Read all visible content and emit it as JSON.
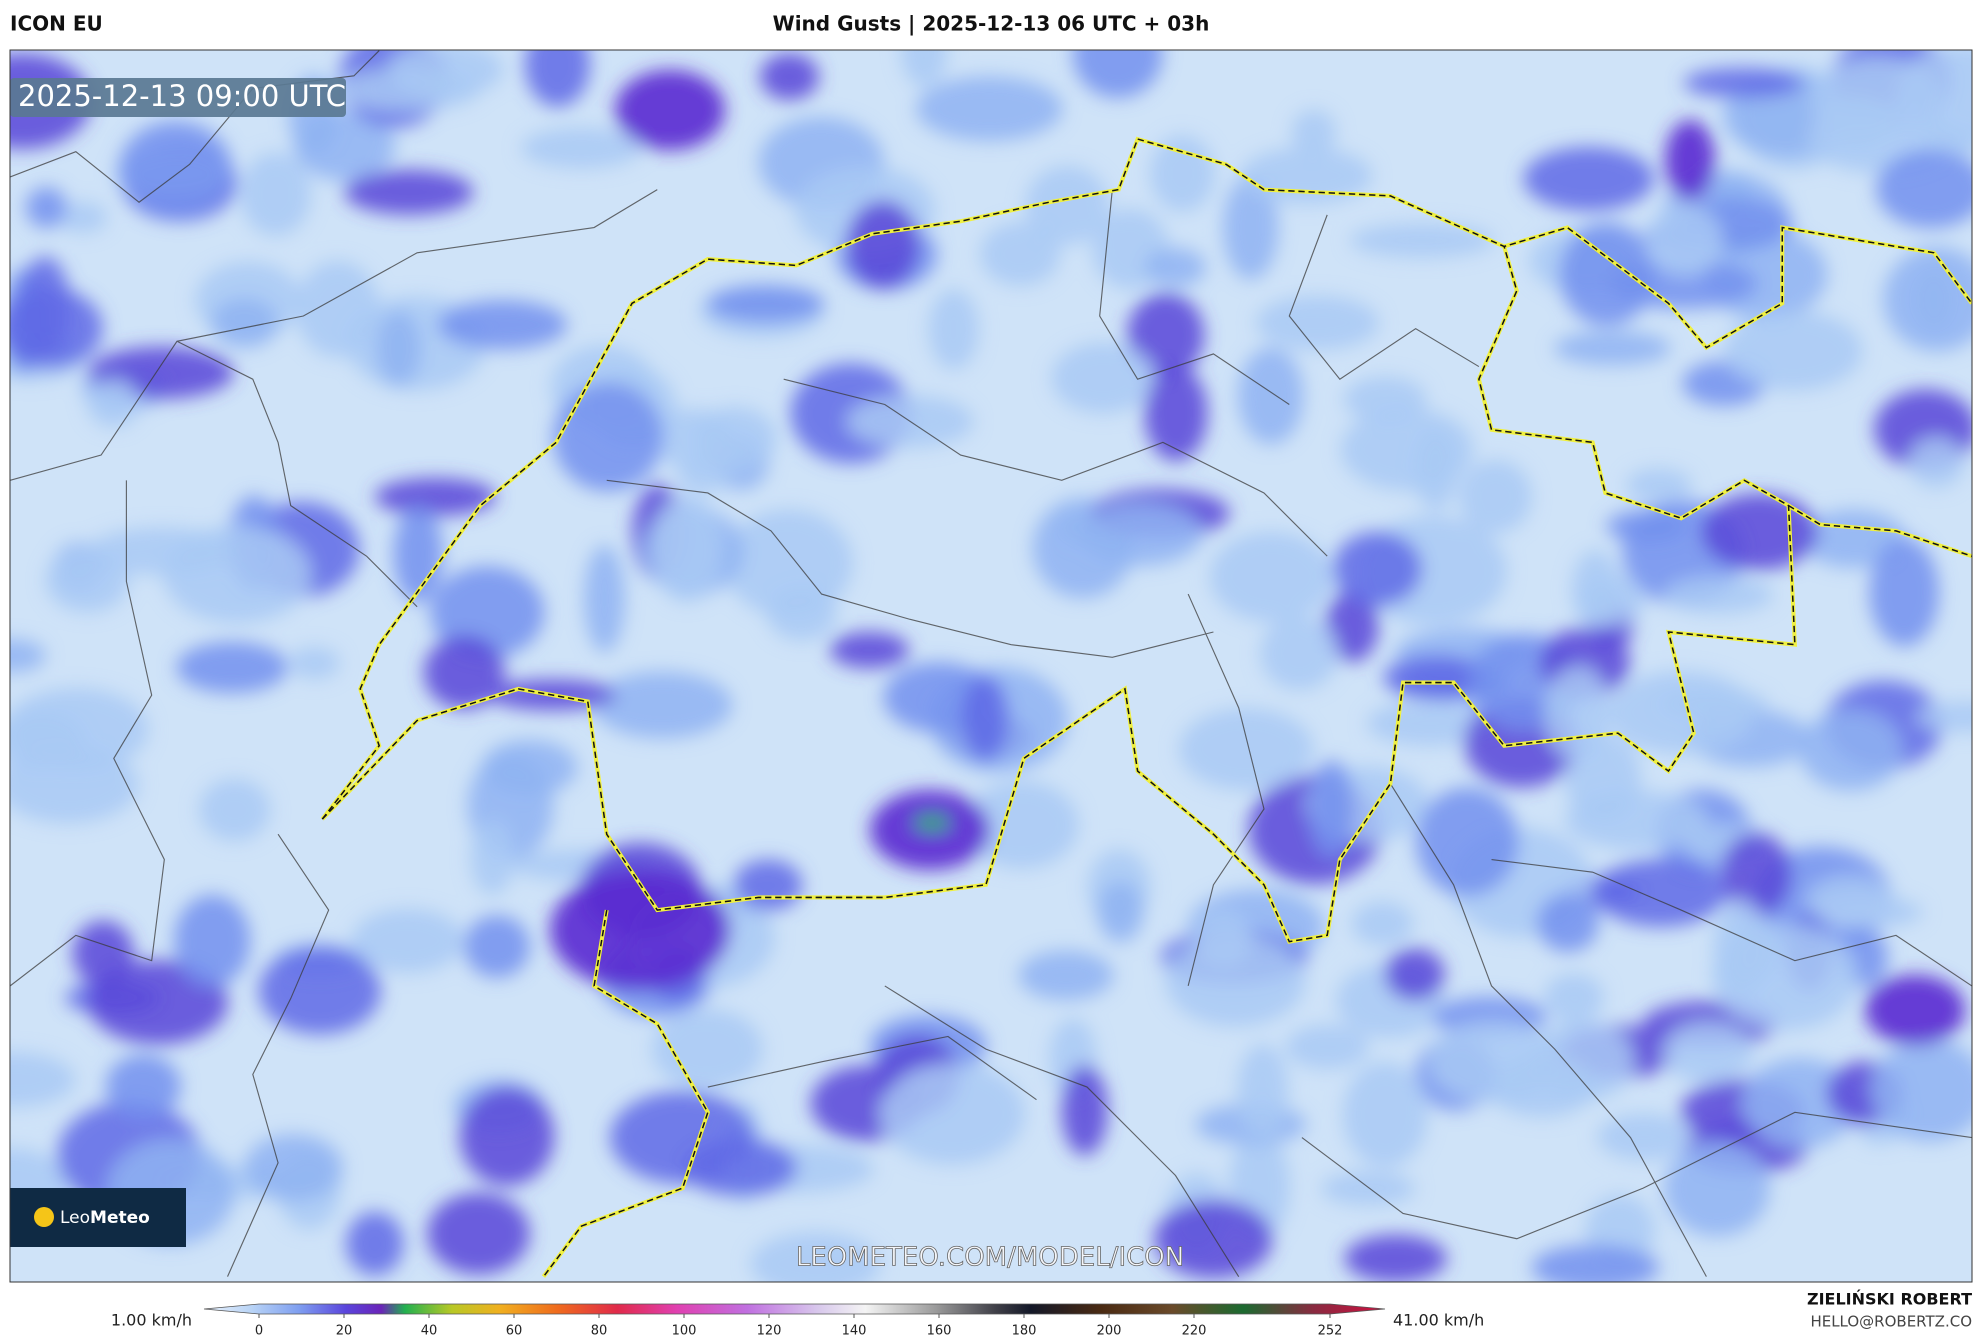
{
  "header": {
    "model": "ICON EU",
    "title": "Wind Gusts | 2025-12-13 06 UTC + 03h"
  },
  "map": {
    "valid_time": "2025-12-13 09:00 UTC",
    "logo": {
      "prefix": "Leo",
      "brand": "Meteo"
    },
    "watermark": "LEOMETEO.COM/MODEL/ICON"
  },
  "colorbar": {
    "min_label": "1.00 km/h",
    "max_label": "41.00 km/h",
    "range": [
      0,
      252
    ],
    "ticks": [
      0,
      20,
      40,
      60,
      80,
      100,
      120,
      140,
      160,
      180,
      200,
      220,
      252
    ]
  },
  "credit": {
    "author": "ZIELIŃSKI ROBERT",
    "email": "HELLO@ROBERTZ.CO"
  }
}
